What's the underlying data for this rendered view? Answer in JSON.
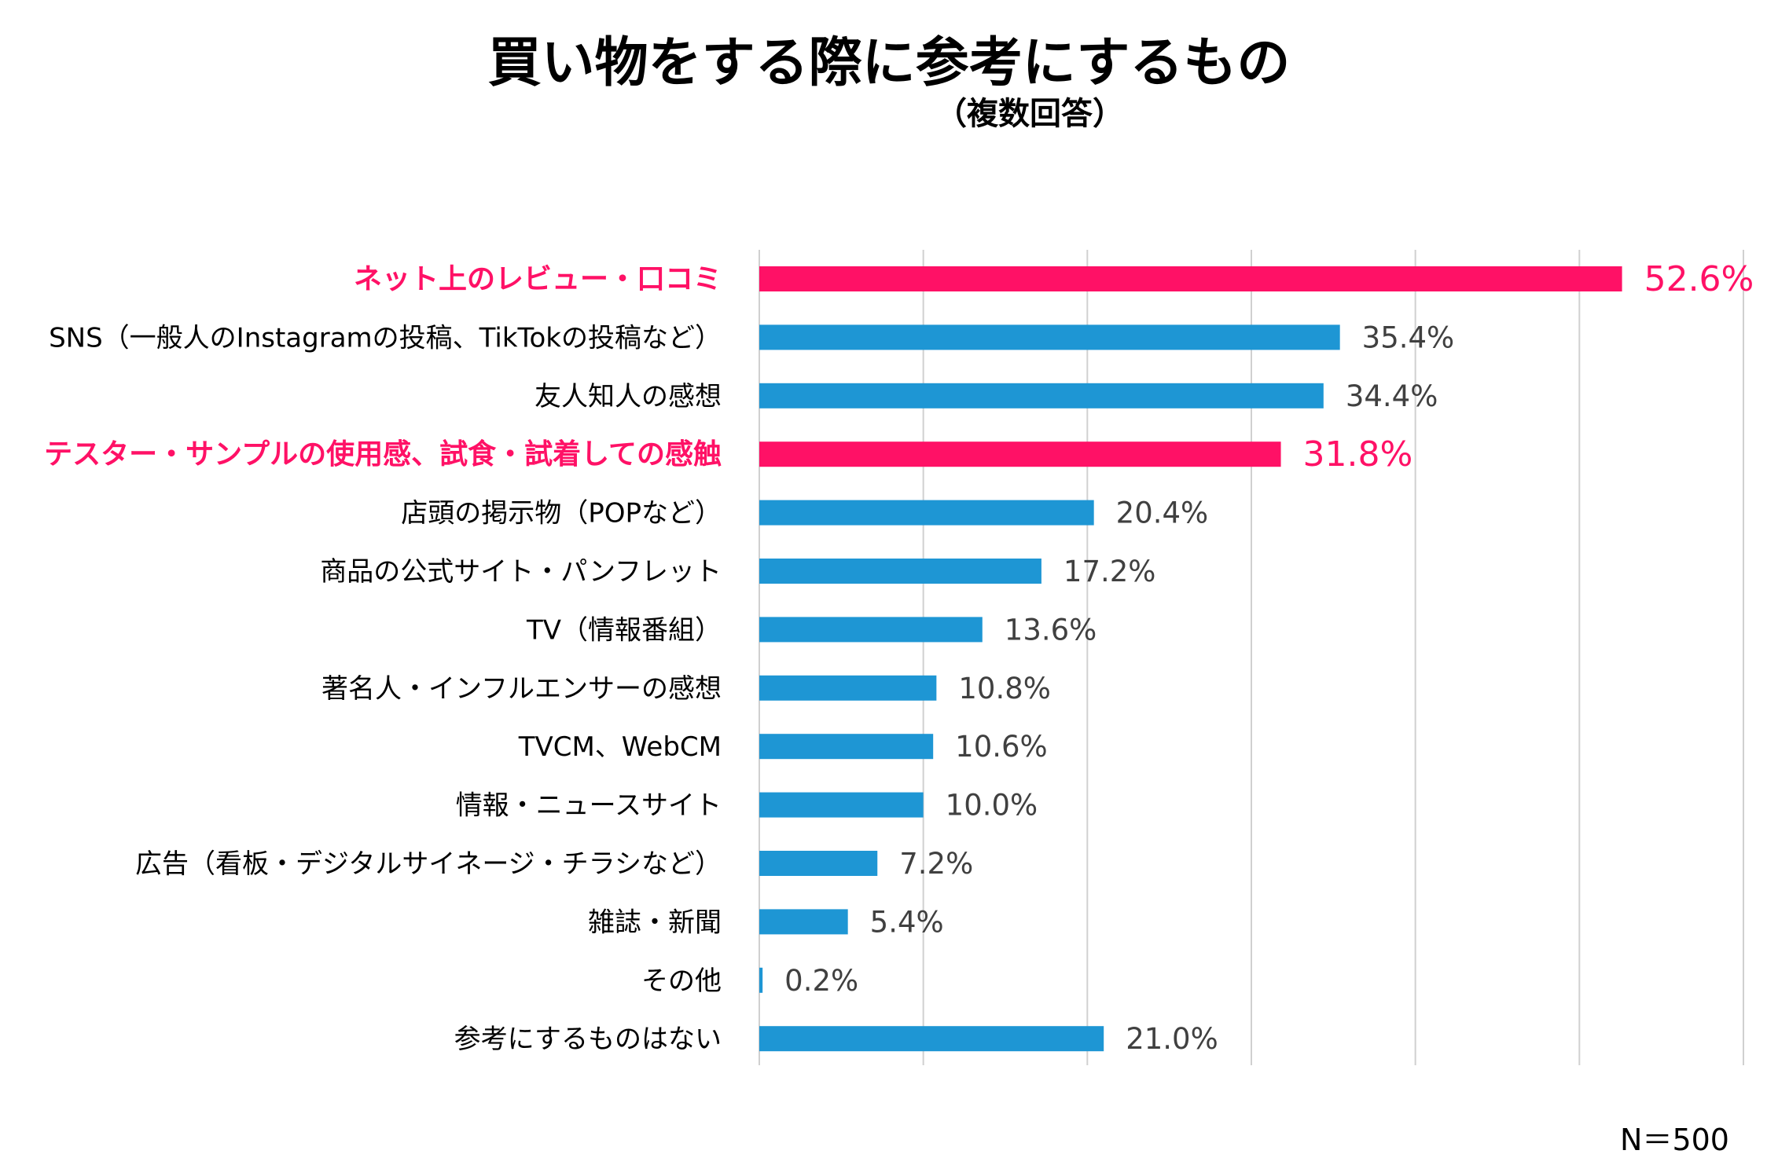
{
  "chart_data": {
    "type": "bar",
    "orientation": "horizontal",
    "title": "買い物をする際に参考にするもの",
    "subtitle": "（複数回答）",
    "categories": [
      "ネット上のレビュー・口コミ",
      "SNS（一般人のInstagramの投稿、TikTokの投稿など）",
      "友人知人の感想",
      "テスター・サンプルの使用感、試食・試着しての感触",
      "店頭の掲示物（POPなど）",
      "商品の公式サイト・パンフレット",
      "TV（情報番組）",
      "著名人・インフルエンサーの感想",
      "TVCM、WebCM",
      "情報・ニュースサイト",
      "広告（看板・デジタルサイネージ・チラシなど）",
      "雑誌・新聞",
      "その他",
      "参考にするものはない"
    ],
    "values": [
      52.6,
      35.4,
      34.4,
      31.8,
      20.4,
      17.2,
      13.6,
      10.8,
      10.6,
      10.0,
      7.2,
      5.4,
      0.2,
      21.0
    ],
    "value_labels": [
      "52.6%",
      "35.4%",
      "34.4%",
      "31.8%",
      "20.4%",
      "17.2%",
      "13.6%",
      "10.8%",
      "10.6%",
      "10.0%",
      "7.2%",
      "5.4%",
      "0.2%",
      "21.0%"
    ],
    "highlighted": [
      true,
      false,
      false,
      true,
      false,
      false,
      false,
      false,
      false,
      false,
      false,
      false,
      false,
      false
    ],
    "xlim": [
      0,
      60
    ],
    "grid": true,
    "grid_step": 10,
    "colors": {
      "bar": "#1e96d4",
      "highlight": "#ff1166",
      "grid": "#d0d0d0",
      "label": "#000000",
      "value_label": "#404040"
    },
    "note": "N＝500"
  }
}
